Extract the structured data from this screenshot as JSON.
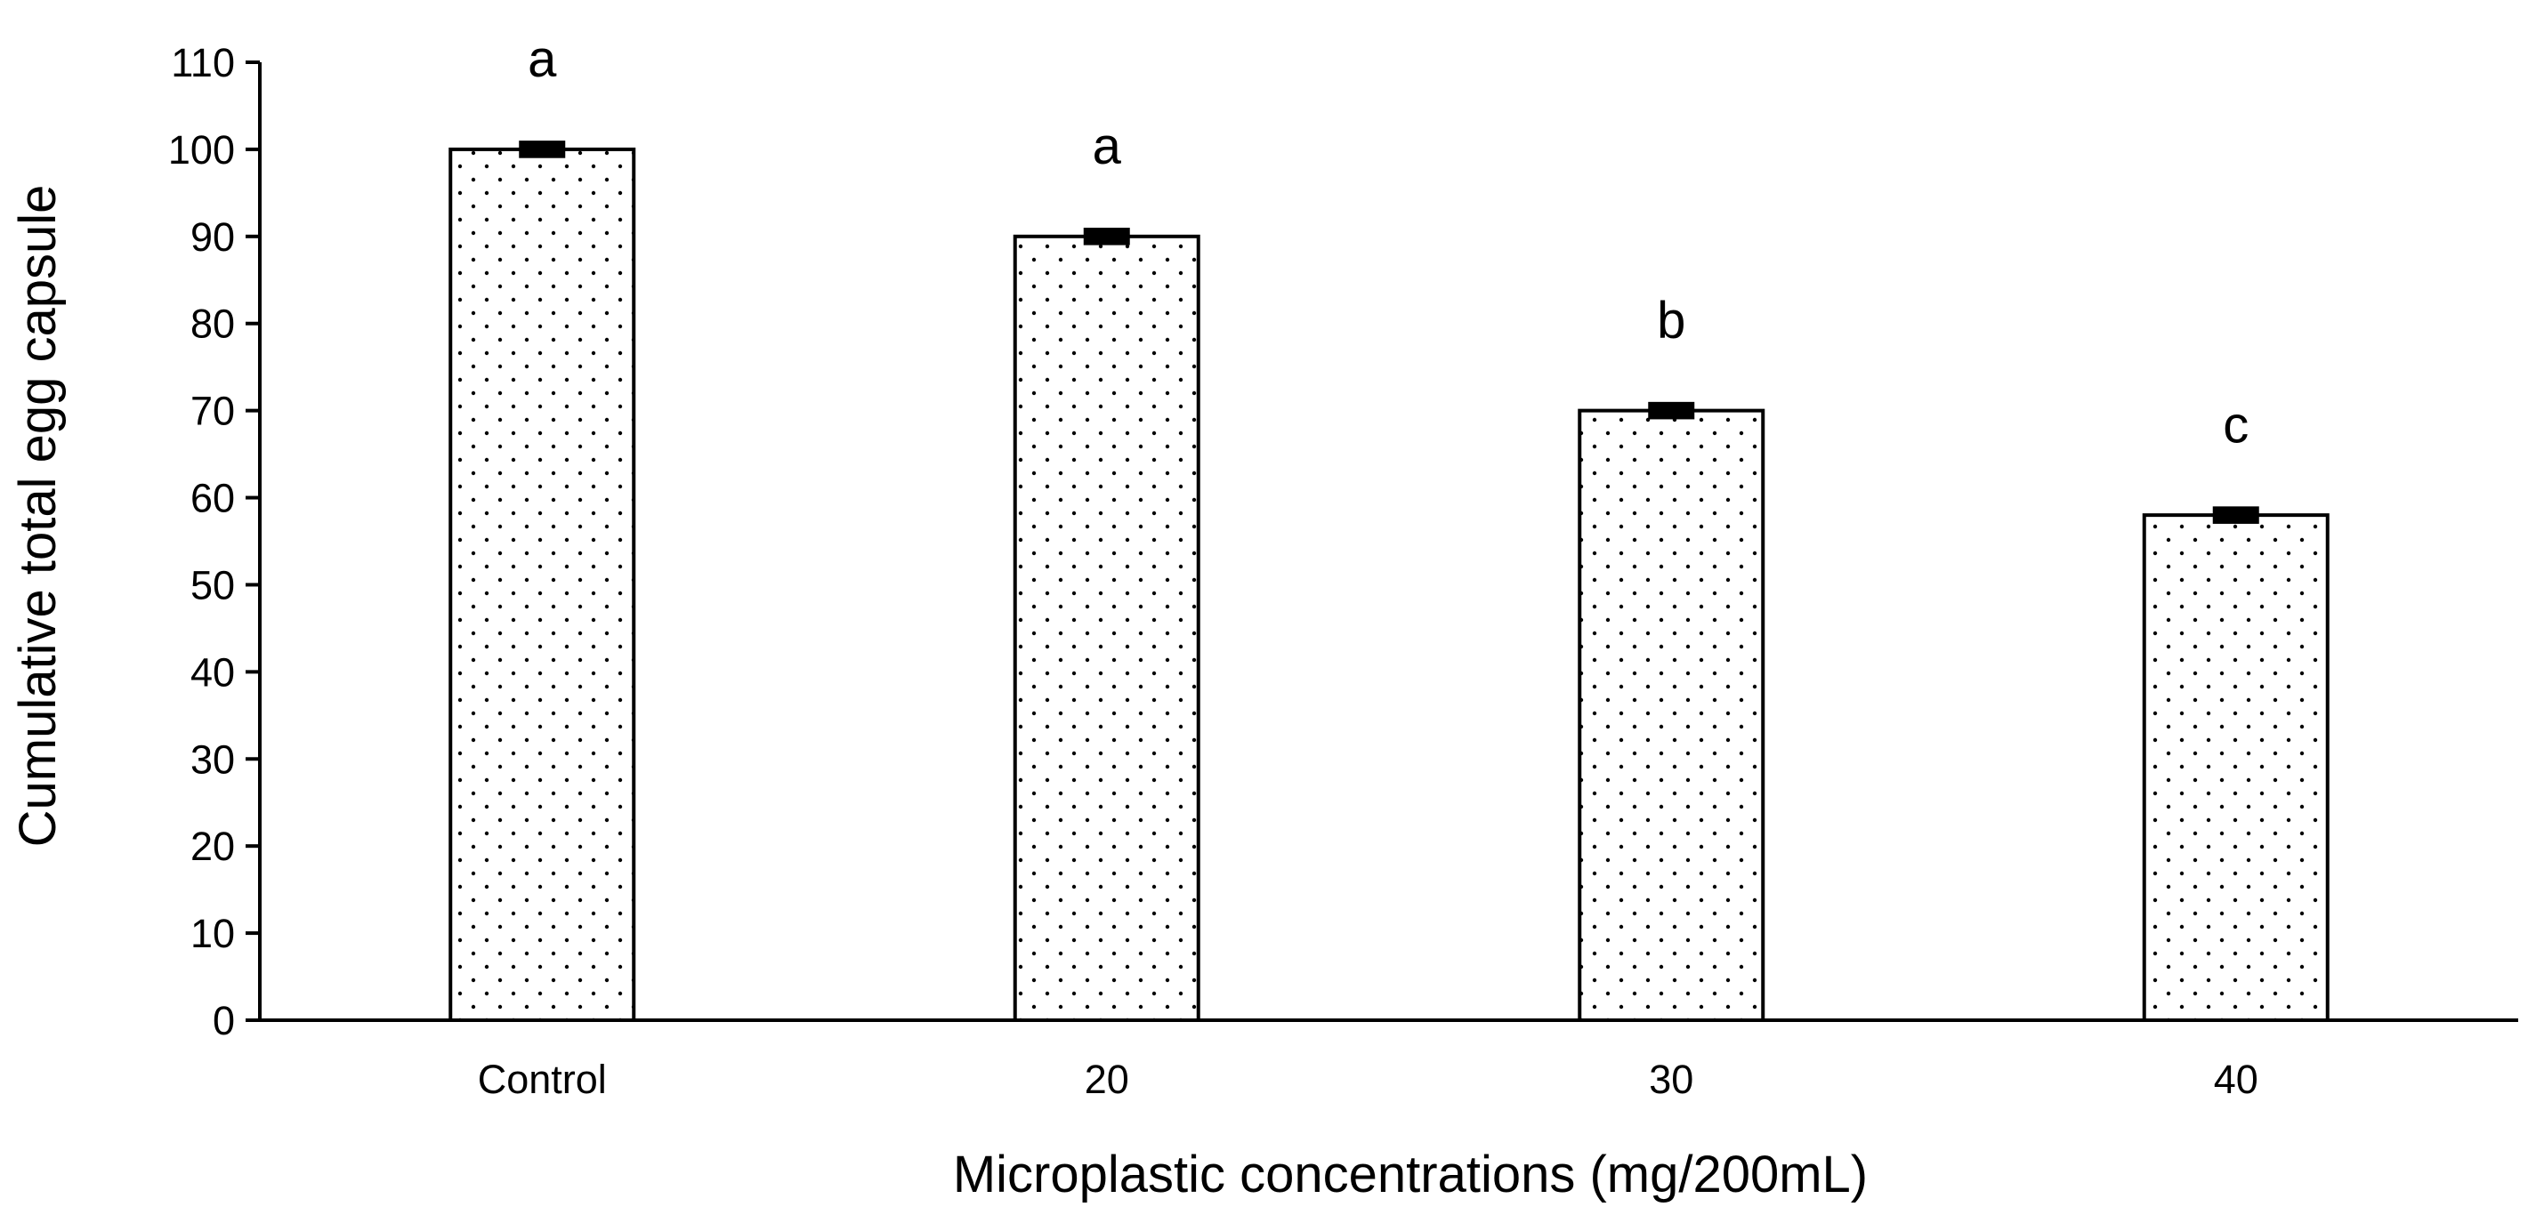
{
  "chart_data": {
    "type": "bar",
    "title": "",
    "xlabel": "Microplastic concentrations (mg/200mL)",
    "ylabel": "Cumulative total egg capsule",
    "categories": [
      "Control",
      "20",
      "30",
      "40"
    ],
    "values": [
      100,
      90,
      70,
      58
    ],
    "error": [
      1,
      1,
      1,
      1
    ],
    "significance_letters": [
      "a",
      "a",
      "b",
      "c"
    ],
    "ylim": [
      0,
      110
    ],
    "yticks": [
      0,
      10,
      20,
      30,
      40,
      50,
      60,
      70,
      80,
      90,
      100,
      110
    ],
    "grid": false,
    "legend": "none",
    "bar_fill": "dotted",
    "colors": {
      "bar_fill": "#ffffff",
      "bar_dots": "#000000",
      "bar_edge": "#000000",
      "axis": "#000000",
      "error_bar": "#000000"
    }
  }
}
